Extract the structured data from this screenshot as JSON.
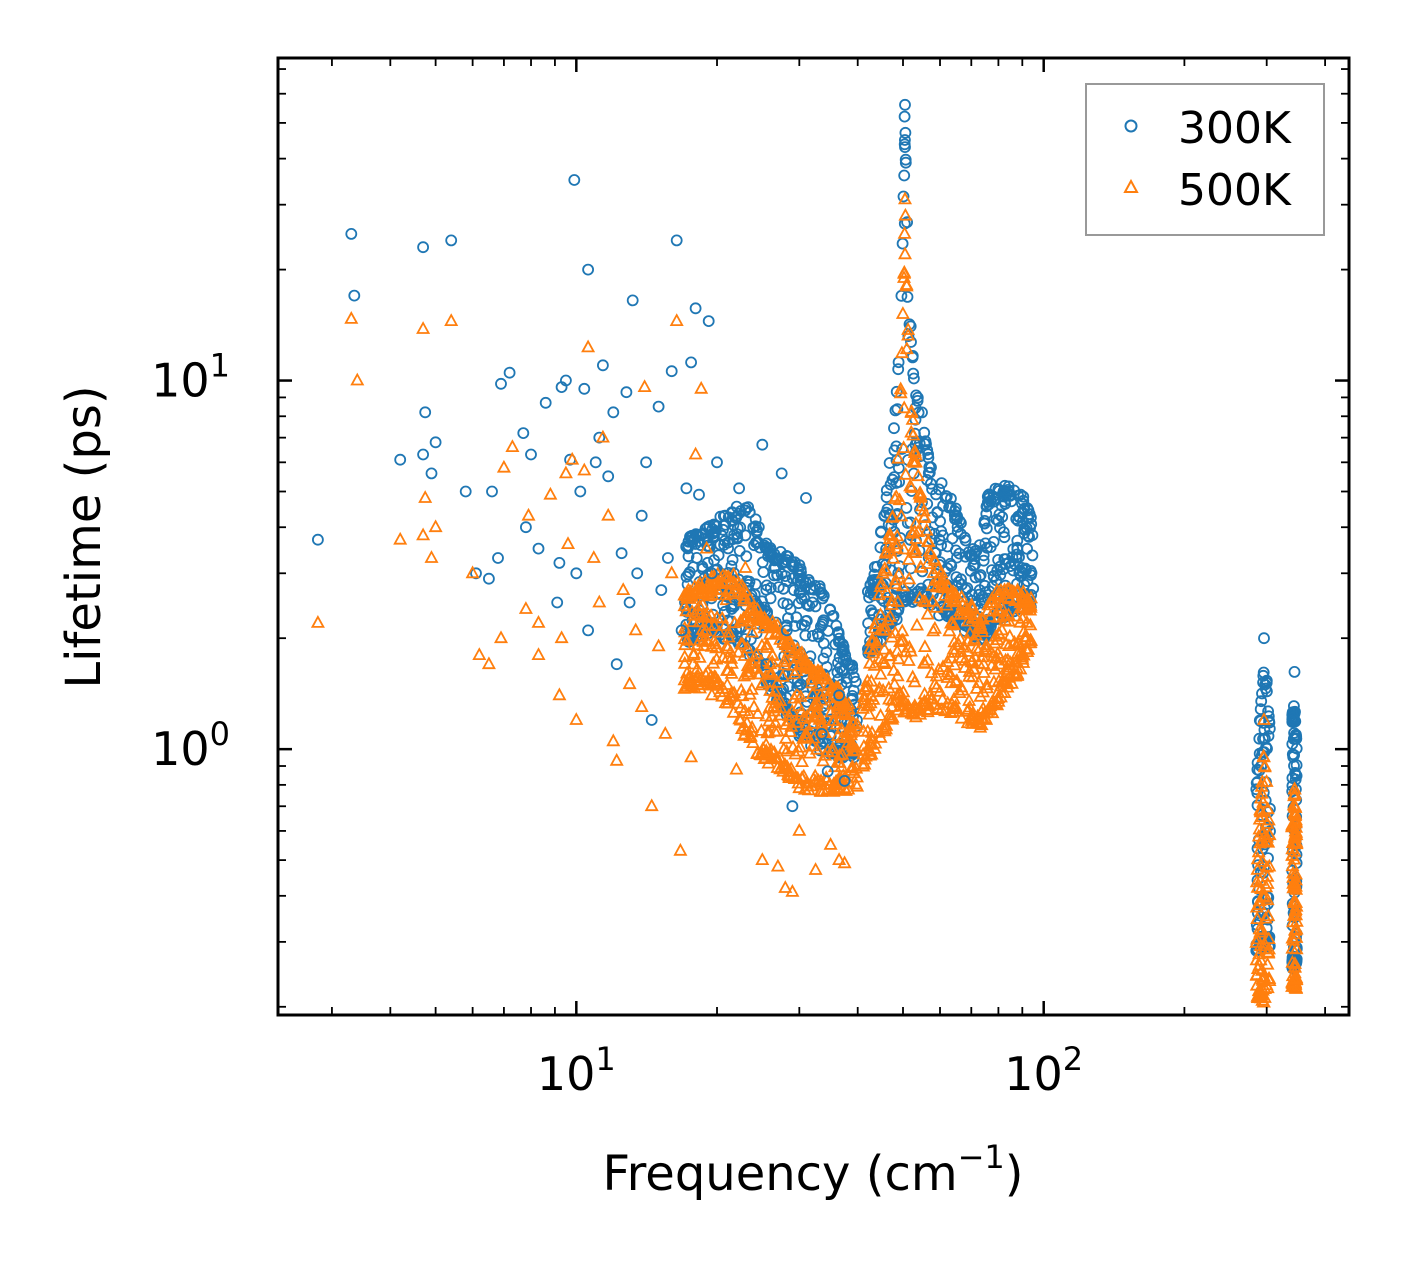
{
  "chart_data": {
    "type": "scatter",
    "title": "",
    "xlabel": "Frequency (cm",
    "xlabel_sup": "−1",
    "xlabel_end": ")",
    "ylabel": "Lifetime (ps)",
    "xscale": "log",
    "yscale": "log",
    "xlim": [
      2.3,
      450
    ],
    "ylim": [
      0.19,
      75
    ],
    "x_ticks": [
      {
        "value": 10,
        "base": "10",
        "exp": "1"
      },
      {
        "value": 100,
        "base": "10",
        "exp": "2"
      }
    ],
    "y_ticks": [
      {
        "value": 1,
        "base": "10",
        "exp": "0"
      },
      {
        "value": 10,
        "base": "10",
        "exp": "1"
      }
    ],
    "legend": {
      "position": "top-right"
    },
    "series": [
      {
        "name": "300K",
        "color": "#1f77b4",
        "marker": "circle",
        "points": [
          [
            2.8,
            3.7
          ],
          [
            3.3,
            25
          ],
          [
            3.35,
            17
          ],
          [
            4.2,
            6.1
          ],
          [
            4.7,
            23
          ],
          [
            4.75,
            8.2
          ],
          [
            4.7,
            6.3
          ],
          [
            4.9,
            5.6
          ],
          [
            5.0,
            6.8
          ],
          [
            5.4,
            24
          ],
          [
            5.8,
            5.0
          ],
          [
            6.1,
            3.0
          ],
          [
            6.5,
            2.9
          ],
          [
            6.6,
            5.0
          ],
          [
            6.8,
            3.3
          ],
          [
            6.9,
            9.8
          ],
          [
            7.2,
            10.5
          ],
          [
            7.8,
            4.0
          ],
          [
            7.7,
            7.2
          ],
          [
            8.0,
            6.3
          ],
          [
            8.3,
            3.5
          ],
          [
            8.6,
            8.7
          ],
          [
            9.1,
            2.5
          ],
          [
            9.2,
            3.2
          ],
          [
            9.3,
            9.6
          ],
          [
            9.5,
            10.0
          ],
          [
            9.7,
            6.1
          ],
          [
            9.9,
            35
          ],
          [
            10.0,
            3.0
          ],
          [
            10.2,
            5.0
          ],
          [
            10.4,
            9.5
          ],
          [
            10.6,
            20
          ],
          [
            10.6,
            2.1
          ],
          [
            11.0,
            6.0
          ],
          [
            11.2,
            7.0
          ],
          [
            11.4,
            11.0
          ],
          [
            11.7,
            5.5
          ],
          [
            12.0,
            8.2
          ],
          [
            12.2,
            1.7
          ],
          [
            12.5,
            3.4
          ],
          [
            12.8,
            9.3
          ],
          [
            13.0,
            2.5
          ],
          [
            13.2,
            16.5
          ],
          [
            13.5,
            3.0
          ],
          [
            13.8,
            4.3
          ],
          [
            14.1,
            6.0
          ],
          [
            14.5,
            1.2
          ],
          [
            15.0,
            8.5
          ],
          [
            15.2,
            2.7
          ],
          [
            15.7,
            3.3
          ],
          [
            16.0,
            10.6
          ],
          [
            16.4,
            24
          ],
          [
            16.8,
            2.1
          ],
          [
            17.2,
            5.1
          ],
          [
            17.6,
            11.2
          ],
          [
            18.0,
            15.7
          ],
          [
            18.3,
            4.9
          ],
          [
            18.7,
            3.7
          ],
          [
            19.2,
            14.5
          ],
          [
            19.5,
            3.0
          ],
          [
            20.0,
            6.0
          ],
          [
            20.8,
            4.3
          ],
          [
            21.5,
            2.4
          ],
          [
            22.3,
            5.1
          ],
          [
            23.0,
            3.8
          ],
          [
            24.2,
            2.8
          ],
          [
            25.0,
            6.7
          ],
          [
            25.5,
            1.7
          ],
          [
            26.5,
            3.1
          ],
          [
            27.5,
            5.6
          ],
          [
            28.2,
            2.1
          ],
          [
            29.0,
            0.7
          ],
          [
            30.2,
            1.5
          ],
          [
            31.0,
            4.8
          ],
          [
            32.0,
            2.5
          ],
          [
            33.5,
            1.1
          ],
          [
            34.5,
            0.87
          ],
          [
            35.5,
            2.3
          ],
          [
            36.5,
            1.4
          ],
          [
            37.5,
            0.82
          ]
        ]
      },
      {
        "name": "500K",
        "color": "#ff7f0e",
        "marker": "triangle",
        "points": [
          [
            2.8,
            2.2
          ],
          [
            3.3,
            14.7
          ],
          [
            3.4,
            10.0
          ],
          [
            4.2,
            3.7
          ],
          [
            4.7,
            13.8
          ],
          [
            4.75,
            4.8
          ],
          [
            4.7,
            3.8
          ],
          [
            4.9,
            3.3
          ],
          [
            5.0,
            4.0
          ],
          [
            5.4,
            14.5
          ],
          [
            6.0,
            3.0
          ],
          [
            6.2,
            1.8
          ],
          [
            6.5,
            1.7
          ],
          [
            6.9,
            2.0
          ],
          [
            7.0,
            5.8
          ],
          [
            7.3,
            6.6
          ],
          [
            7.8,
            2.4
          ],
          [
            7.9,
            4.3
          ],
          [
            8.3,
            2.2
          ],
          [
            8.3,
            1.8
          ],
          [
            8.8,
            4.9
          ],
          [
            9.2,
            1.4
          ],
          [
            9.3,
            2.0
          ],
          [
            9.5,
            5.6
          ],
          [
            9.6,
            3.6
          ],
          [
            9.8,
            6.1
          ],
          [
            10.0,
            1.2
          ],
          [
            10.4,
            5.7
          ],
          [
            10.6,
            12.3
          ],
          [
            10.9,
            3.3
          ],
          [
            11.2,
            2.5
          ],
          [
            11.4,
            7.0
          ],
          [
            11.7,
            4.3
          ],
          [
            12.0,
            1.05
          ],
          [
            12.2,
            0.93
          ],
          [
            12.6,
            2.7
          ],
          [
            13.0,
            1.5
          ],
          [
            13.4,
            2.1
          ],
          [
            13.8,
            1.3
          ],
          [
            14.0,
            9.6
          ],
          [
            14.5,
            0.7
          ],
          [
            15.0,
            1.9
          ],
          [
            15.5,
            1.1
          ],
          [
            16.0,
            3.0
          ],
          [
            16.4,
            14.5
          ],
          [
            16.7,
            0.53
          ],
          [
            17.2,
            2.6
          ],
          [
            17.6,
            0.95
          ],
          [
            18.0,
            6.3
          ],
          [
            18.5,
            9.5
          ],
          [
            19.0,
            3.5
          ],
          [
            19.5,
            1.4
          ],
          [
            20.0,
            2.7
          ],
          [
            21.0,
            1.9
          ],
          [
            22.0,
            0.88
          ],
          [
            23.0,
            3.1
          ],
          [
            24.0,
            1.3
          ],
          [
            25.0,
            0.5
          ],
          [
            26.0,
            1.7
          ],
          [
            27.0,
            0.48
          ],
          [
            28.0,
            0.42
          ],
          [
            29.0,
            0.41
          ],
          [
            30.0,
            0.6
          ],
          [
            31.0,
            1.1
          ],
          [
            32.5,
            0.47
          ],
          [
            33.5,
            0.8
          ],
          [
            35.0,
            0.55
          ],
          [
            36.5,
            0.5
          ],
          [
            37.5,
            0.49
          ]
        ]
      }
    ],
    "dense_bands": [
      {
        "series": "300K",
        "x_range": [
          17,
          40
        ],
        "y_upper": [
          [
            17,
            3.6
          ],
          [
            20,
            4.1
          ],
          [
            23,
            4.6
          ],
          [
            26,
            3.5
          ],
          [
            30,
            3.1
          ],
          [
            34,
            2.6
          ],
          [
            40,
            1.5
          ]
        ],
        "y_lower": [
          [
            17,
            2.0
          ],
          [
            20,
            2.1
          ],
          [
            23,
            1.9
          ],
          [
            26,
            1.5
          ],
          [
            30,
            1.1
          ],
          [
            34,
            1.0
          ],
          [
            40,
            0.95
          ]
        ]
      },
      {
        "series": "300K",
        "x_range": [
          42,
          95
        ],
        "y_upper": [
          [
            42,
            2.6
          ],
          [
            44,
            3.2
          ],
          [
            46,
            4.8
          ],
          [
            48,
            7.8
          ],
          [
            49.5,
            15.0
          ],
          [
            50.5,
            48.0
          ],
          [
            51.5,
            16.0
          ],
          [
            53,
            9.5
          ],
          [
            55,
            8.0
          ],
          [
            58,
            5.5
          ],
          [
            62,
            4.9
          ],
          [
            66,
            4.2
          ],
          [
            70,
            3.4
          ],
          [
            73,
            3.6
          ],
          [
            76,
            4.8
          ],
          [
            80,
            5.1
          ],
          [
            85,
            5.0
          ],
          [
            90,
            4.8
          ],
          [
            94,
            4.2
          ]
        ],
        "y_lower": [
          [
            42,
            1.8
          ],
          [
            44,
            1.9
          ],
          [
            46,
            2.1
          ],
          [
            48,
            2.2
          ],
          [
            50,
            2.6
          ],
          [
            52,
            2.5
          ],
          [
            55,
            2.6
          ],
          [
            58,
            2.4
          ],
          [
            62,
            2.3
          ],
          [
            66,
            2.2
          ],
          [
            70,
            2.1
          ],
          [
            73,
            1.95
          ],
          [
            76,
            2.1
          ],
          [
            80,
            2.3
          ],
          [
            85,
            2.4
          ],
          [
            90,
            2.5
          ],
          [
            94,
            2.5
          ]
        ]
      },
      {
        "series": "500K",
        "x_range": [
          17,
          40
        ],
        "y_upper": [
          [
            17,
            2.6
          ],
          [
            20,
            2.9
          ],
          [
            22,
            2.9
          ],
          [
            24,
            2.4
          ],
          [
            27,
            2.1
          ],
          [
            30,
            1.8
          ],
          [
            34,
            1.6
          ],
          [
            40,
            1.2
          ]
        ],
        "y_lower": [
          [
            17,
            1.5
          ],
          [
            20,
            1.5
          ],
          [
            22,
            1.2
          ],
          [
            24,
            1.0
          ],
          [
            27,
            0.9
          ],
          [
            30,
            0.8
          ],
          [
            34,
            0.78
          ],
          [
            40,
            0.8
          ]
        ]
      },
      {
        "series": "500K",
        "x_range": [
          41,
          94
        ],
        "y_upper": [
          [
            41,
            1.3
          ],
          [
            43,
            2.0
          ],
          [
            45,
            2.9
          ],
          [
            47,
            3.9
          ],
          [
            49,
            6.5
          ],
          [
            50.5,
            24.0
          ],
          [
            52,
            8.5
          ],
          [
            54,
            5.2
          ],
          [
            57,
            3.5
          ],
          [
            61,
            2.9
          ],
          [
            65,
            2.6
          ],
          [
            70,
            2.4
          ],
          [
            74,
            2.2
          ],
          [
            78,
            2.6
          ],
          [
            84,
            2.7
          ],
          [
            90,
            2.6
          ],
          [
            94,
            2.5
          ]
        ],
        "y_lower": [
          [
            41,
            0.9
          ],
          [
            43,
            1.0
          ],
          [
            45,
            1.1
          ],
          [
            47,
            1.2
          ],
          [
            50,
            1.3
          ],
          [
            53,
            1.25
          ],
          [
            57,
            1.3
          ],
          [
            61,
            1.3
          ],
          [
            65,
            1.25
          ],
          [
            70,
            1.2
          ],
          [
            74,
            1.15
          ],
          [
            78,
            1.3
          ],
          [
            84,
            1.5
          ],
          [
            90,
            1.7
          ],
          [
            94,
            1.9
          ]
        ]
      },
      {
        "series": "300K",
        "x_range": [
          285,
          305
        ],
        "y_upper": [
          [
            285,
            0.8
          ],
          [
            292,
            1.35
          ],
          [
            296,
            1.6
          ],
          [
            300,
            1.5
          ],
          [
            305,
            1.1
          ]
        ],
        "y_lower": [
          [
            285,
            0.28
          ],
          [
            292,
            0.3
          ],
          [
            296,
            0.3
          ],
          [
            300,
            0.3
          ],
          [
            305,
            0.3
          ]
        ]
      },
      {
        "series": "300K",
        "x_range": [
          340,
          348
        ],
        "y_upper": [
          [
            340,
            1.2
          ],
          [
            344,
            1.3
          ],
          [
            348,
            1.0
          ]
        ],
        "y_lower": [
          [
            340,
            0.26
          ],
          [
            344,
            0.26
          ],
          [
            348,
            0.26
          ]
        ]
      },
      {
        "series": "500K",
        "x_range": [
          285,
          305
        ],
        "y_upper": [
          [
            285,
            0.42
          ],
          [
            292,
            0.75
          ],
          [
            296,
            1.0
          ],
          [
            300,
            0.8
          ],
          [
            305,
            0.55
          ]
        ],
        "y_lower": [
          [
            285,
            0.22
          ],
          [
            292,
            0.21
          ],
          [
            296,
            0.21
          ],
          [
            300,
            0.22
          ],
          [
            305,
            0.24
          ]
        ]
      },
      {
        "series": "500K",
        "x_range": [
          340,
          348
        ],
        "y_upper": [
          [
            340,
            0.6
          ],
          [
            344,
            0.8
          ],
          [
            348,
            0.55
          ]
        ],
        "y_lower": [
          [
            340,
            0.23
          ],
          [
            344,
            0.23
          ],
          [
            348,
            0.23
          ]
        ]
      }
    ],
    "peak_points": [
      {
        "series": "300K",
        "points": [
          [
            50.5,
            56
          ],
          [
            50.4,
            52
          ],
          [
            50.6,
            47
          ],
          [
            50.5,
            43
          ],
          [
            50.7,
            39
          ],
          [
            50.3,
            36
          ],
          [
            296,
            2.0
          ],
          [
            344,
            1.62
          ]
        ]
      },
      {
        "series": "500K",
        "points": [
          [
            50.5,
            31
          ],
          [
            50.6,
            28
          ],
          [
            50.4,
            25
          ],
          [
            50.5,
            22
          ],
          [
            296,
            1.2
          ]
        ]
      }
    ]
  }
}
